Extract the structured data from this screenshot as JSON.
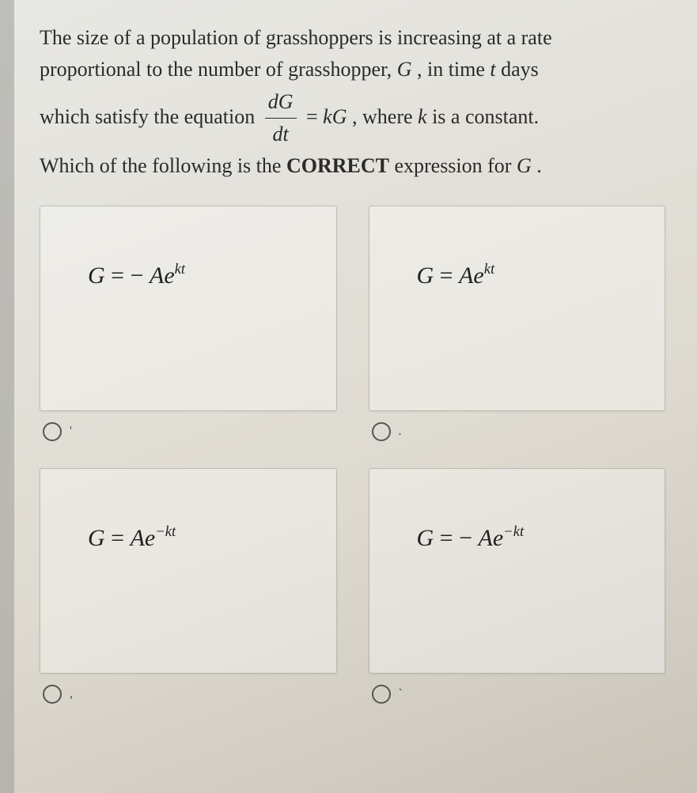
{
  "question": {
    "line1": "The size of a population of grasshoppers is increasing at a rate",
    "line2_a": "proportional to the number of  grasshopper,  ",
    "line2_G": "G",
    "line2_b": " , in time  ",
    "line2_t": "t",
    "line2_c": "  days",
    "line3_a": "which satisfy the equation ",
    "frac_num_d": "d",
    "frac_num_G": "G",
    "frac_den_d": "d",
    "frac_den_t": "t",
    "line3_eq": " = ",
    "line3_kG": "kG",
    "line3_b": " , where ",
    "line3_k": "k",
    "line3_c": " is a constant.",
    "line4_a": "Which of the following is the ",
    "line4_bold": "CORRECT",
    "line4_b": " expression for ",
    "line4_G": "G",
    "line4_c": " ."
  },
  "options": [
    {
      "G": "G",
      "eq": " = − ",
      "A": "A",
      "e": "e",
      "exp": "kt",
      "marker": "'"
    },
    {
      "G": "G",
      "eq": " = ",
      "A": "A",
      "e": "e",
      "exp": "kt",
      "marker": "."
    },
    {
      "G": "G",
      "eq": " = ",
      "A": "A",
      "e": "e",
      "exp": "−kt",
      "marker": ","
    },
    {
      "G": "G",
      "eq": " = − ",
      "A": "A",
      "e": "e",
      "exp": "−kt",
      "marker": "`"
    }
  ],
  "style": {
    "card_bg": "rgba(255,255,255,0.35)",
    "card_border": "rgba(120,120,110,0.4)",
    "radio_border": "#555",
    "question_fontsize": 26,
    "formula_fontsize": 30
  }
}
